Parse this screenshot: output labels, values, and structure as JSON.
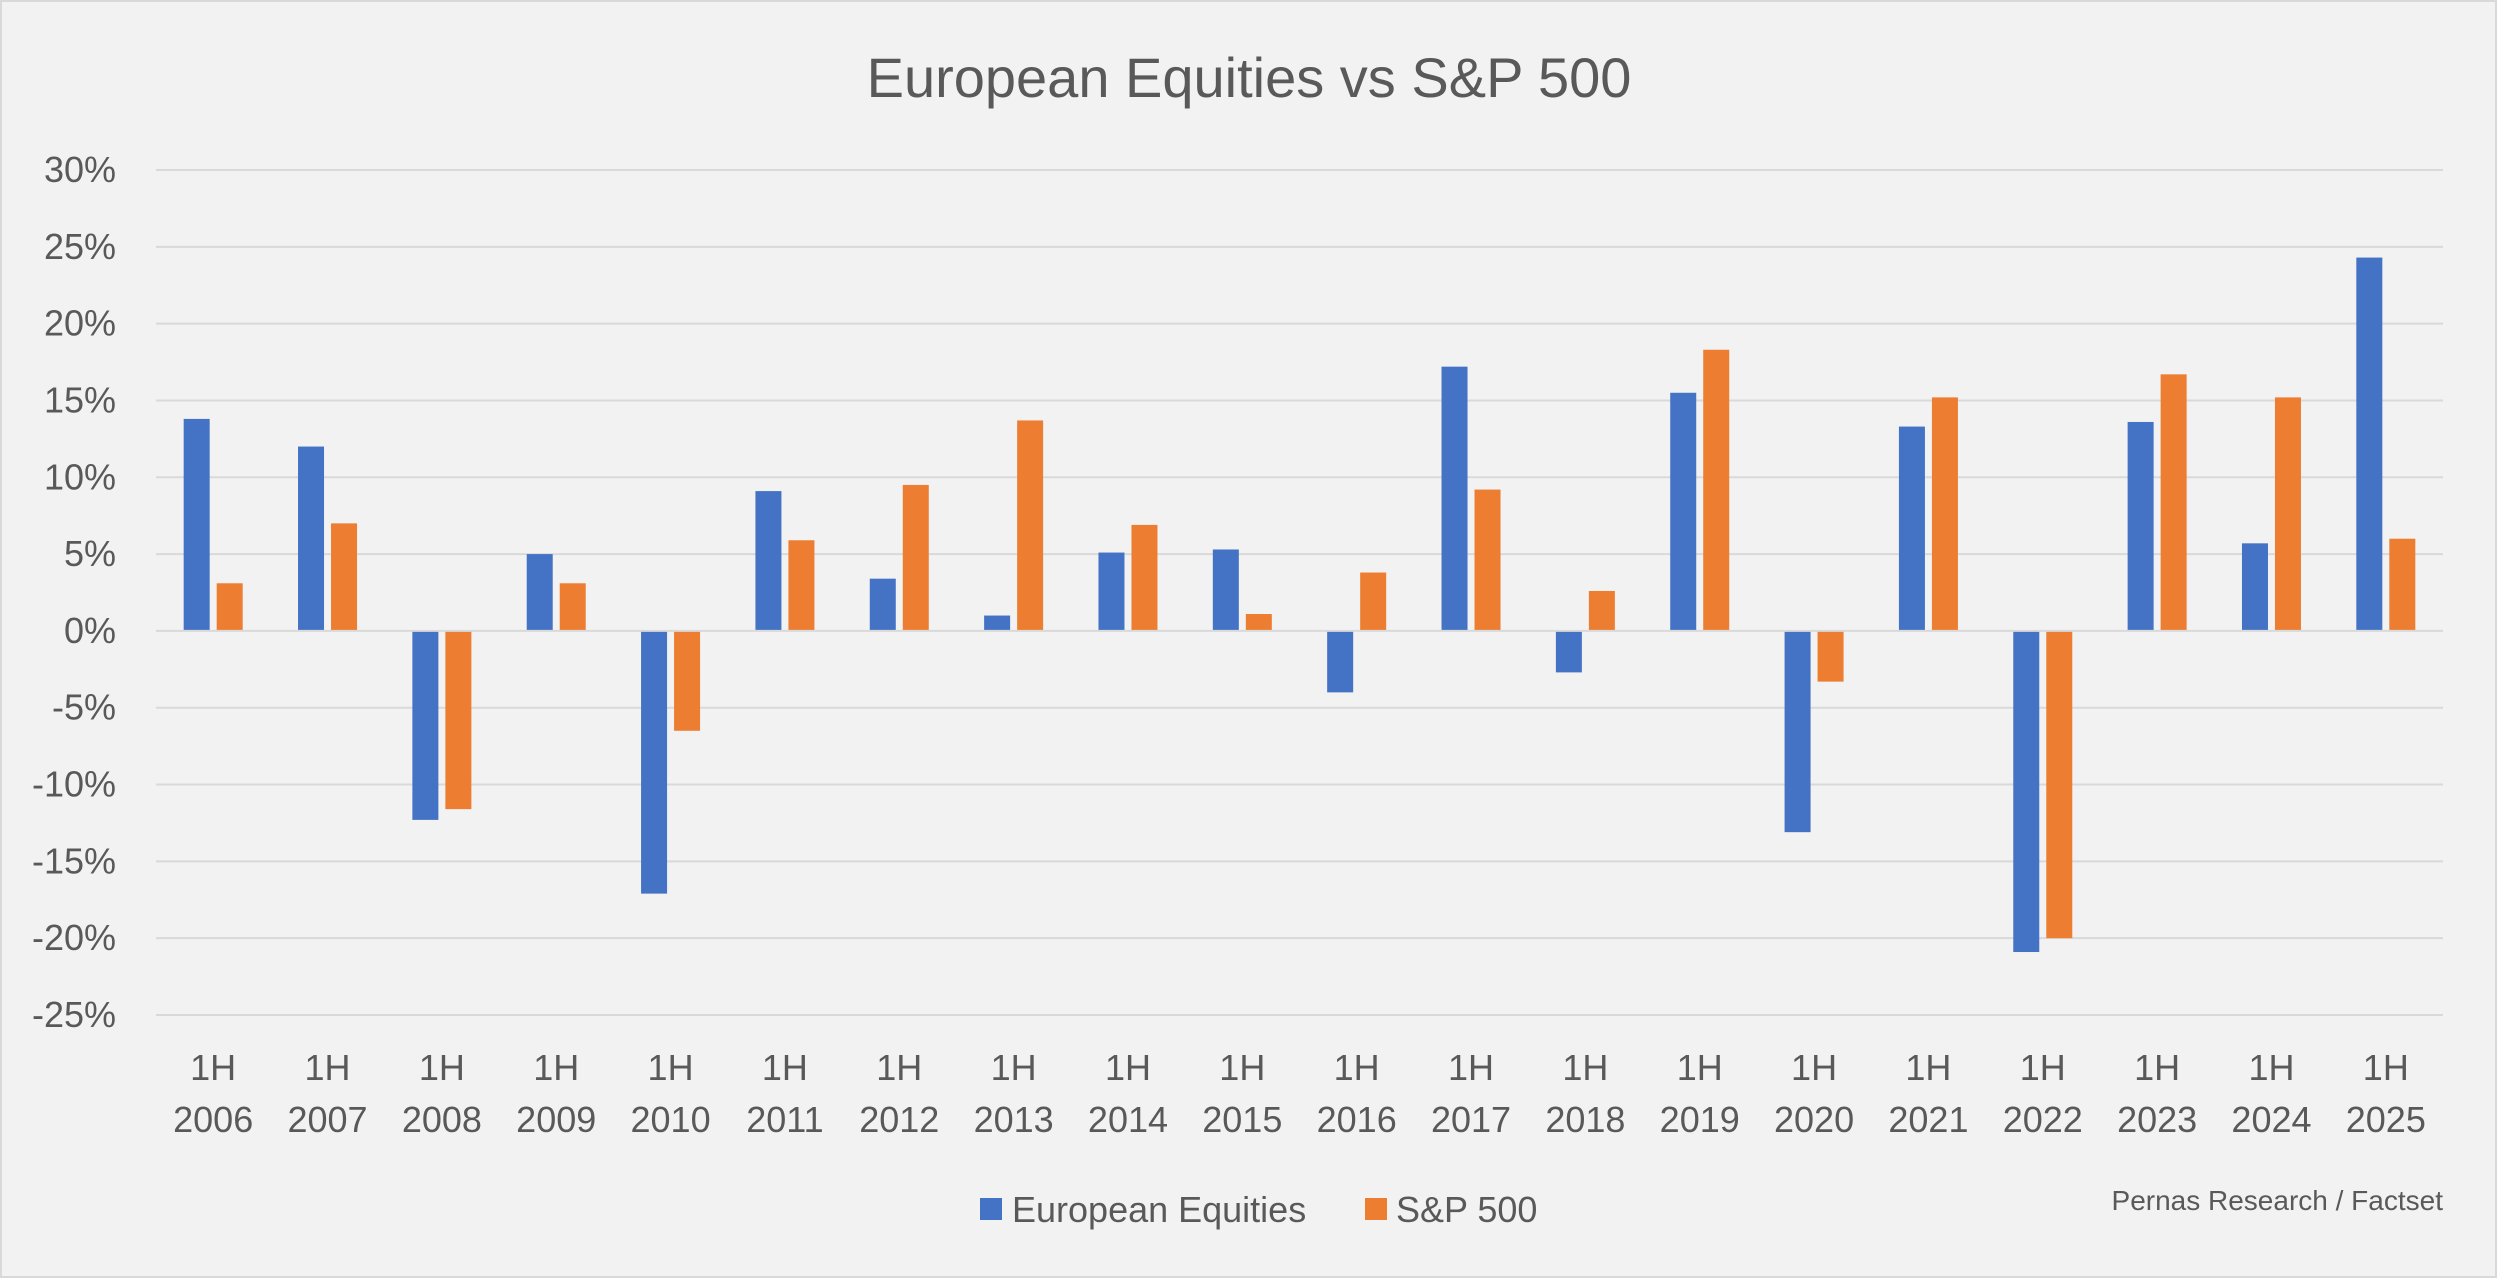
{
  "chart_data": {
    "type": "bar",
    "title": "European Equities vs S&P 500",
    "xlabel": "",
    "ylabel": "",
    "ylim": [
      -25,
      30
    ],
    "ytick_step": 5,
    "ytick_labels": [
      "30%",
      "25%",
      "20%",
      "15%",
      "10%",
      "5%",
      "0%",
      "-5%",
      "-10%",
      "-15%",
      "-20%",
      "-25%"
    ],
    "grid": true,
    "legend_position": "bottom",
    "categories": [
      [
        "1H",
        "2006"
      ],
      [
        "1H",
        "2007"
      ],
      [
        "1H",
        "2008"
      ],
      [
        "1H",
        "2009"
      ],
      [
        "1H",
        "2010"
      ],
      [
        "1H",
        "2011"
      ],
      [
        "1H",
        "2012"
      ],
      [
        "1H",
        "2013"
      ],
      [
        "1H",
        "2014"
      ],
      [
        "1H",
        "2015"
      ],
      [
        "1H",
        "2016"
      ],
      [
        "1H",
        "2017"
      ],
      [
        "1H",
        "2018"
      ],
      [
        "1H",
        "2019"
      ],
      [
        "1H",
        "2020"
      ],
      [
        "1H",
        "2021"
      ],
      [
        "1H",
        "2022"
      ],
      [
        "1H",
        "2023"
      ],
      [
        "1H",
        "2024"
      ],
      [
        "1H",
        "2025"
      ]
    ],
    "series": [
      {
        "name": "European Equities",
        "color": "#4472c4",
        "values": [
          13.8,
          12.0,
          -12.3,
          5.0,
          -17.1,
          9.1,
          3.4,
          1.0,
          5.1,
          5.3,
          -4.0,
          17.2,
          -2.7,
          15.5,
          -13.1,
          13.3,
          -20.9,
          13.6,
          5.7,
          24.3
        ]
      },
      {
        "name": "S&P 500",
        "color": "#ed7d31",
        "values": [
          3.1,
          7.0,
          -11.6,
          3.1,
          -6.5,
          5.9,
          9.5,
          13.7,
          6.9,
          1.1,
          3.8,
          9.2,
          2.6,
          18.3,
          -3.3,
          15.2,
          -20.0,
          16.7,
          15.2,
          6.0
        ]
      }
    ],
    "source_note": "Pernas Research / Factset"
  }
}
